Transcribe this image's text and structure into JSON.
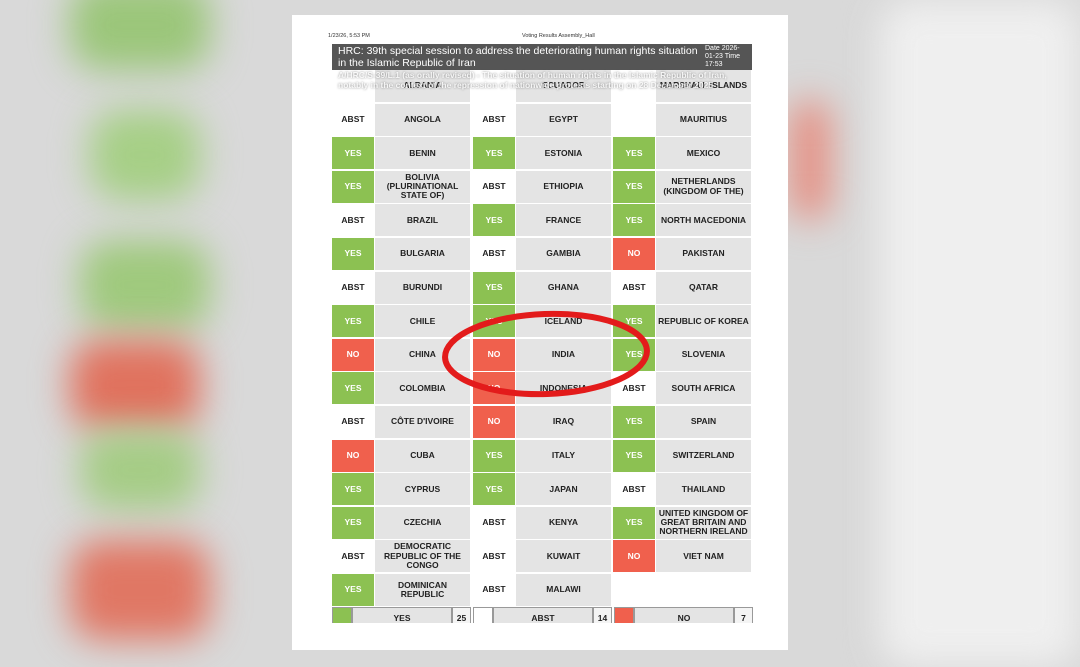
{
  "header": {
    "timestamp": "1/23/26, 5:53 PM",
    "doc_title": "Voting Results Assembly_Hall"
  },
  "bar": {
    "title": "HRC: 39th special session to address the deteriorating human rights situation in the Islamic Republic of Iran",
    "date": "Date 2026-01-23 Time 17:53",
    "subtitle": "A/HRC/S-39/L.1 (as orally revised) - The situation of human rights in the Islamic Republic of Iran, notably in the context of the repression of nationwide protests starting on 28 December 2025"
  },
  "vote_colors": {
    "YES": "#8cc152",
    "ABST": "#ffffff",
    "NO": "#f0604d"
  },
  "table": {
    "columns": [
      {
        "rows": [
          {
            "country": "ALBANIA"
          },
          {
            "vote": "ABST",
            "country": "ANGOLA"
          },
          {
            "vote": "YES",
            "country": "BENIN"
          },
          {
            "vote": "YES",
            "country": "BOLIVIA (PLURINATIONAL STATE OF)"
          },
          {
            "vote": "ABST",
            "country": "BRAZIL"
          },
          {
            "vote": "YES",
            "country": "BULGARIA"
          },
          {
            "vote": "ABST",
            "country": "BURUNDI"
          },
          {
            "vote": "YES",
            "country": "CHILE"
          },
          {
            "vote": "NO",
            "country": "CHINA"
          },
          {
            "vote": "YES",
            "country": "COLOMBIA"
          },
          {
            "vote": "ABST",
            "country": "CÔTE D'IVOIRE"
          },
          {
            "vote": "NO",
            "country": "CUBA"
          },
          {
            "vote": "YES",
            "country": "CYPRUS"
          },
          {
            "vote": "YES",
            "country": "CZECHIA"
          },
          {
            "vote": "ABST",
            "country": "DEMOCRATIC REPUBLIC OF THE CONGO"
          },
          {
            "vote": "YES",
            "country": "DOMINICAN REPUBLIC"
          }
        ]
      },
      {
        "rows": [
          {
            "country": "ECUADOR"
          },
          {
            "vote": "ABST",
            "country": "EGYPT"
          },
          {
            "vote": "YES",
            "country": "ESTONIA"
          },
          {
            "vote": "ABST",
            "country": "ETHIOPIA"
          },
          {
            "vote": "YES",
            "country": "FRANCE"
          },
          {
            "vote": "ABST",
            "country": "GAMBIA"
          },
          {
            "vote": "YES",
            "country": "GHANA"
          },
          {
            "vote": "YES",
            "country": "ICELAND"
          },
          {
            "vote": "NO",
            "country": "INDIA"
          },
          {
            "vote": "NO",
            "country": "INDONESIA"
          },
          {
            "vote": "NO",
            "country": "IRAQ"
          },
          {
            "vote": "YES",
            "country": "ITALY"
          },
          {
            "vote": "YES",
            "country": "JAPAN"
          },
          {
            "vote": "ABST",
            "country": "KENYA"
          },
          {
            "vote": "ABST",
            "country": "KUWAIT"
          },
          {
            "vote": "ABST",
            "country": "MALAWI"
          }
        ]
      },
      {
        "rows": [
          {
            "country": "MARSHALL ISLANDS"
          },
          {
            "country": "MAURITIUS"
          },
          {
            "vote": "YES",
            "country": "MEXICO"
          },
          {
            "vote": "YES",
            "country": "NETHERLANDS (KINGDOM OF THE)"
          },
          {
            "vote": "YES",
            "country": "NORTH MACEDONIA"
          },
          {
            "vote": "NO",
            "country": "PAKISTAN"
          },
          {
            "vote": "ABST",
            "country": "QATAR"
          },
          {
            "vote": "YES",
            "country": "REPUBLIC OF KOREA"
          },
          {
            "vote": "YES",
            "country": "SLOVENIA"
          },
          {
            "vote": "ABST",
            "country": "SOUTH AFRICA"
          },
          {
            "vote": "YES",
            "country": "SPAIN"
          },
          {
            "vote": "YES",
            "country": "SWITZERLAND"
          },
          {
            "vote": "ABST",
            "country": "THAILAND"
          },
          {
            "vote": "YES",
            "country": "UNITED KINGDOM OF GREAT BRITAIN AND NORTHERN IRELAND"
          },
          {
            "vote": "NO",
            "country": "VIET NAM"
          }
        ]
      }
    ]
  },
  "summary": [
    {
      "label": "YES",
      "count": "25"
    },
    {
      "label": "ABST",
      "count": "14"
    },
    {
      "label": "NO",
      "count": "7"
    }
  ]
}
